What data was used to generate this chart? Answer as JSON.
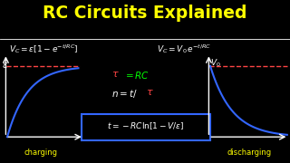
{
  "title": "RC Circuits Explained",
  "title_color": "#FFFF00",
  "bg_color": "#000000",
  "label_charging": "charging",
  "label_discharging": "discharging",
  "white": "#FFFFFF",
  "yellow": "#FFFF00",
  "green": "#00FF00",
  "red": "#FF4444",
  "blue": "#3366FF",
  "curve_color": "#3366FF"
}
